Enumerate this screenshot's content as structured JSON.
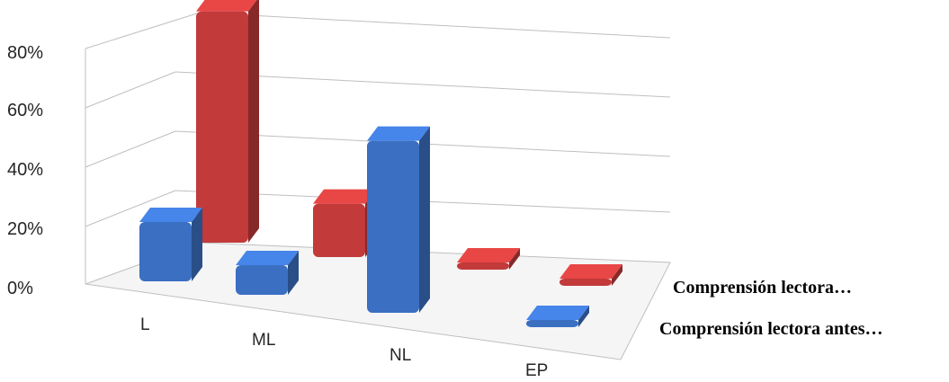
{
  "chart_data": {
    "type": "bar",
    "categories": [
      "L",
      "ML",
      "NL",
      "EP"
    ],
    "series": [
      {
        "name": "Comprensión lectora antes…",
        "values": [
          20,
          10,
          58,
          0
        ],
        "color": "#3a6fc2"
      },
      {
        "name": "Comprensión lectora…",
        "values": [
          78,
          18,
          0,
          0
        ],
        "color": "#c23a3a"
      }
    ],
    "y_ticks": [
      "0%",
      "20%",
      "40%",
      "60%",
      "80%"
    ],
    "ylim": [
      0,
      100
    ],
    "grid": true
  }
}
